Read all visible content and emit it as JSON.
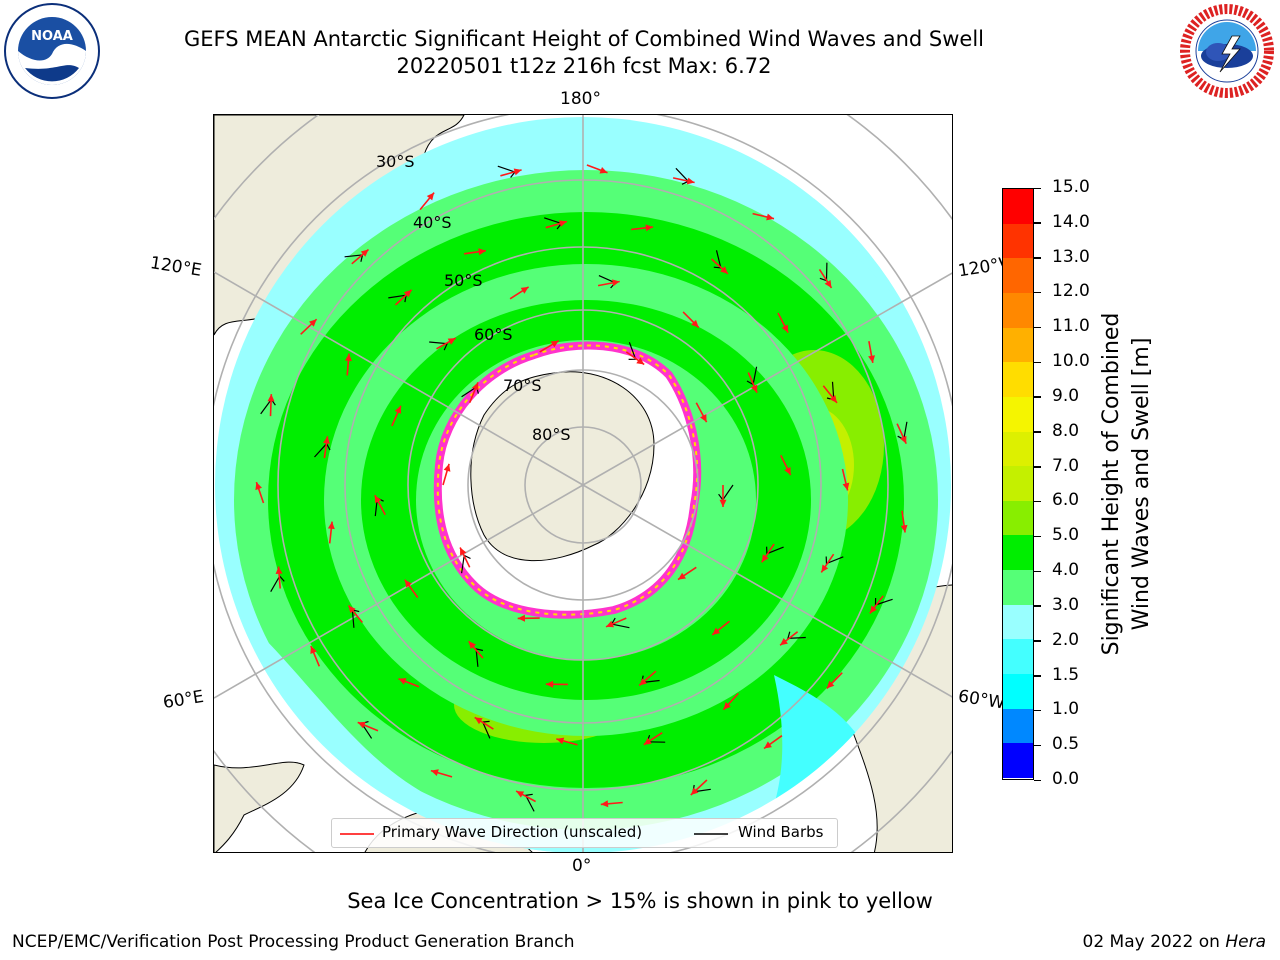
{
  "title": {
    "line1": "GEFS MEAN Antarctic Significant Height of Combined Wind Waves and Swell",
    "line2": "20220501 t12z 216h fcst   Max: 6.72"
  },
  "logos": {
    "left": {
      "text": "NOAA",
      "ring_text": "NATIONAL OCEANIC AND ATMOSPHERIC ADMINISTRATION · U.S. DEPARTMENT OF COMMERCE"
    },
    "right": {
      "ring_text": "NATIONAL WEATHER SERVICE"
    }
  },
  "map": {
    "projection": "south-polar-stereographic",
    "meridian_labels": {
      "top": "180°",
      "upper_left": "120°E",
      "upper_right": "120°W",
      "lower_left": "60°E",
      "lower_right": "60°W",
      "bottom": "0°"
    },
    "latitude_labels": [
      "30°S",
      "40°S",
      "50°S",
      "60°S",
      "70°S",
      "80°S"
    ],
    "legend": {
      "wave_label": "Primary Wave Direction (unscaled)",
      "barb_label": "Wind Barbs"
    }
  },
  "colorbar": {
    "label_line1": "Significant Height of Combined",
    "label_line2": "Wind Waves and Swell [m]",
    "ticks": [
      "15.0",
      "14.0",
      "13.0",
      "12.0",
      "11.0",
      "10.0",
      "9.0",
      "8.0",
      "7.0",
      "6.0",
      "5.0",
      "4.0",
      "3.0",
      "2.0",
      "1.5",
      "1.0",
      "0.5",
      "0.0"
    ],
    "colors": [
      "#ff0000",
      "#ff3300",
      "#ff6600",
      "#ff8800",
      "#ffb000",
      "#ffdd00",
      "#f5f500",
      "#ddf000",
      "#c4f000",
      "#88ee00",
      "#00ee00",
      "#55ff77",
      "#99ffff",
      "#44ffff",
      "#00ffff",
      "#0088ff",
      "#0000ff"
    ]
  },
  "caption": "Sea Ice Concentration > 15% is shown in pink to yellow",
  "footer": {
    "left": "NCEP/EMC/Verification Post Processing Product Generation Branch",
    "right_date": "02 May 2022 on",
    "right_machine": "Hera"
  }
}
